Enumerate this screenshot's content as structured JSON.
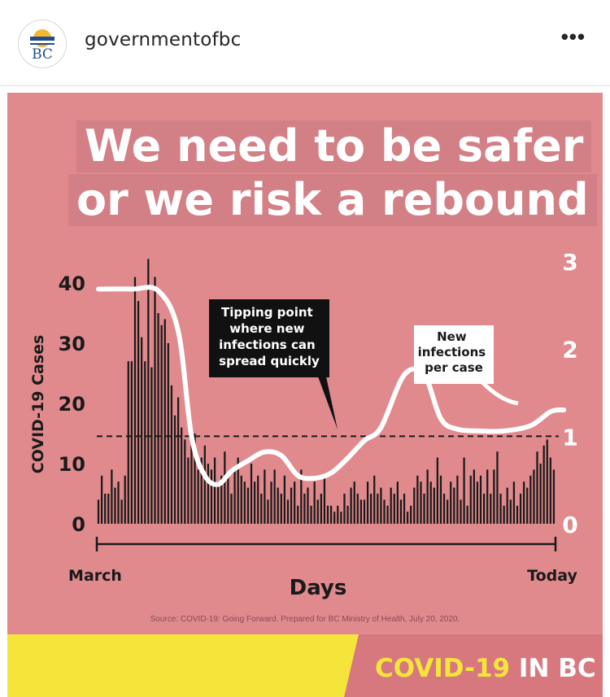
{
  "account": {
    "username": "governmentofbc",
    "avatar_text": "BC"
  },
  "menu_icon": "more-horizontal-icon",
  "post": {
    "title_line1": "We need to be safer",
    "title_line2": "or we risk a rebound",
    "source": "Source: COVID-19: Going Forward. Prepared for BC Ministry of Health, July 20, 2020.",
    "footer_text_part1": "COVID-19",
    "footer_text_part2": " IN BC"
  },
  "colors": {
    "background": "#e08a8d",
    "title_band": "#d37f86",
    "bars": "#1a1a1a",
    "curve": "#ffffff",
    "footer_yellow": "#f5e53a",
    "footer_pink": "#d7787f"
  },
  "chart_data": {
    "type": "bar",
    "xlabel": "Days",
    "ylabel": "COVID-19 Cases",
    "x_start_label": "March",
    "x_end_label": "Today",
    "ylim": [
      0,
      45
    ],
    "y_ticks": [
      "0",
      "10",
      "20",
      "30",
      "40"
    ],
    "y2lim": [
      0,
      3
    ],
    "y2_ticks": [
      "0",
      "1",
      "2",
      "3"
    ],
    "grid": false,
    "values": [
      4,
      8,
      5,
      5,
      9,
      6,
      7,
      4,
      8,
      27,
      27,
      41,
      37,
      31,
      27,
      44,
      26,
      41,
      35,
      33,
      34,
      30,
      23,
      18,
      21,
      16,
      14,
      11,
      13,
      15,
      9,
      11,
      13,
      10,
      9,
      11,
      7,
      8,
      12,
      8,
      5,
      9,
      11,
      8,
      7,
      6,
      10,
      7,
      8,
      5,
      9,
      4,
      7,
      9,
      6,
      5,
      8,
      4,
      6,
      7,
      3,
      9,
      5,
      6,
      3,
      7,
      4,
      5,
      8,
      3,
      3,
      2,
      3,
      2,
      5,
      3,
      6,
      7,
      5,
      4,
      4,
      7,
      5,
      8,
      5,
      6,
      4,
      3,
      6,
      5,
      7,
      4,
      5,
      2,
      3,
      6,
      8,
      7,
      5,
      9,
      7,
      6,
      11,
      8,
      5,
      4,
      7,
      6,
      8,
      4,
      11,
      3,
      8,
      9,
      7,
      8,
      5,
      9,
      5,
      9,
      12,
      5,
      3,
      6,
      4,
      7,
      3,
      5,
      7,
      6,
      8,
      9,
      12,
      10,
      13,
      14,
      11,
      9
    ],
    "series": [
      {
        "name": "New infections per case",
        "axis": "right",
        "x_index": [
          0,
          10,
          18,
          24,
          28,
          32,
          36,
          40,
          45,
          50,
          55,
          60,
          65,
          70,
          75,
          80,
          85,
          92,
          98,
          103,
          108,
          115,
          122,
          130,
          136,
          140
        ],
        "values": [
          2.68,
          2.68,
          2.66,
          2.2,
          1.0,
          0.55,
          0.45,
          0.6,
          0.72,
          0.82,
          0.78,
          0.55,
          0.52,
          0.58,
          0.75,
          0.95,
          1.1,
          1.7,
          1.7,
          1.2,
          1.08,
          1.06,
          1.06,
          1.12,
          1.28,
          1.3
        ]
      },
      {
        "name": "Tipping point",
        "axis": "right",
        "type": "reference_line",
        "value": 1
      }
    ],
    "annotations": [
      {
        "text_lines": [
          "Tipping point",
          "where new",
          "infections can",
          "spread quickly"
        ],
        "target": "tipping-point-line"
      },
      {
        "text_lines": [
          "New",
          "infections",
          "per case"
        ],
        "target": "curve"
      }
    ]
  }
}
